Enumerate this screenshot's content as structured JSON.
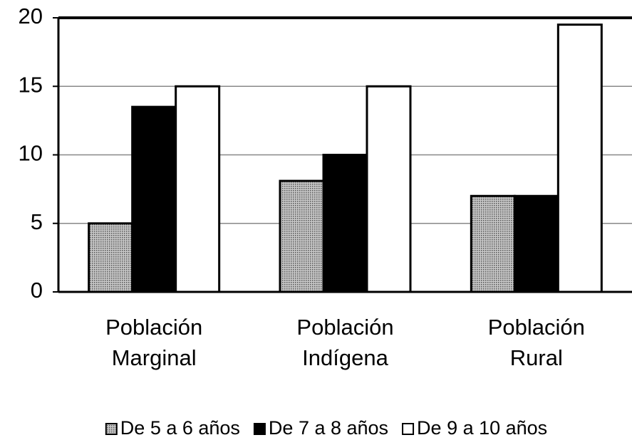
{
  "chart_data": {
    "type": "bar",
    "categories": [
      "Población Marginal",
      "Población Indígena",
      "Población Rural"
    ],
    "series": [
      {
        "name": "De 5 a 6 años",
        "color": "#a0a0a0",
        "values": [
          5,
          8.1,
          7
        ]
      },
      {
        "name": "De 7 a 8 años",
        "color": "#000000",
        "values": [
          13.5,
          10,
          7
        ]
      },
      {
        "name": "De 9 a 10 años",
        "color": "#ffffff",
        "values": [
          15,
          15,
          19.5
        ]
      }
    ],
    "ylim": [
      0,
      20
    ],
    "yticks": [
      0,
      5,
      10,
      15,
      20
    ],
    "grid": true
  }
}
